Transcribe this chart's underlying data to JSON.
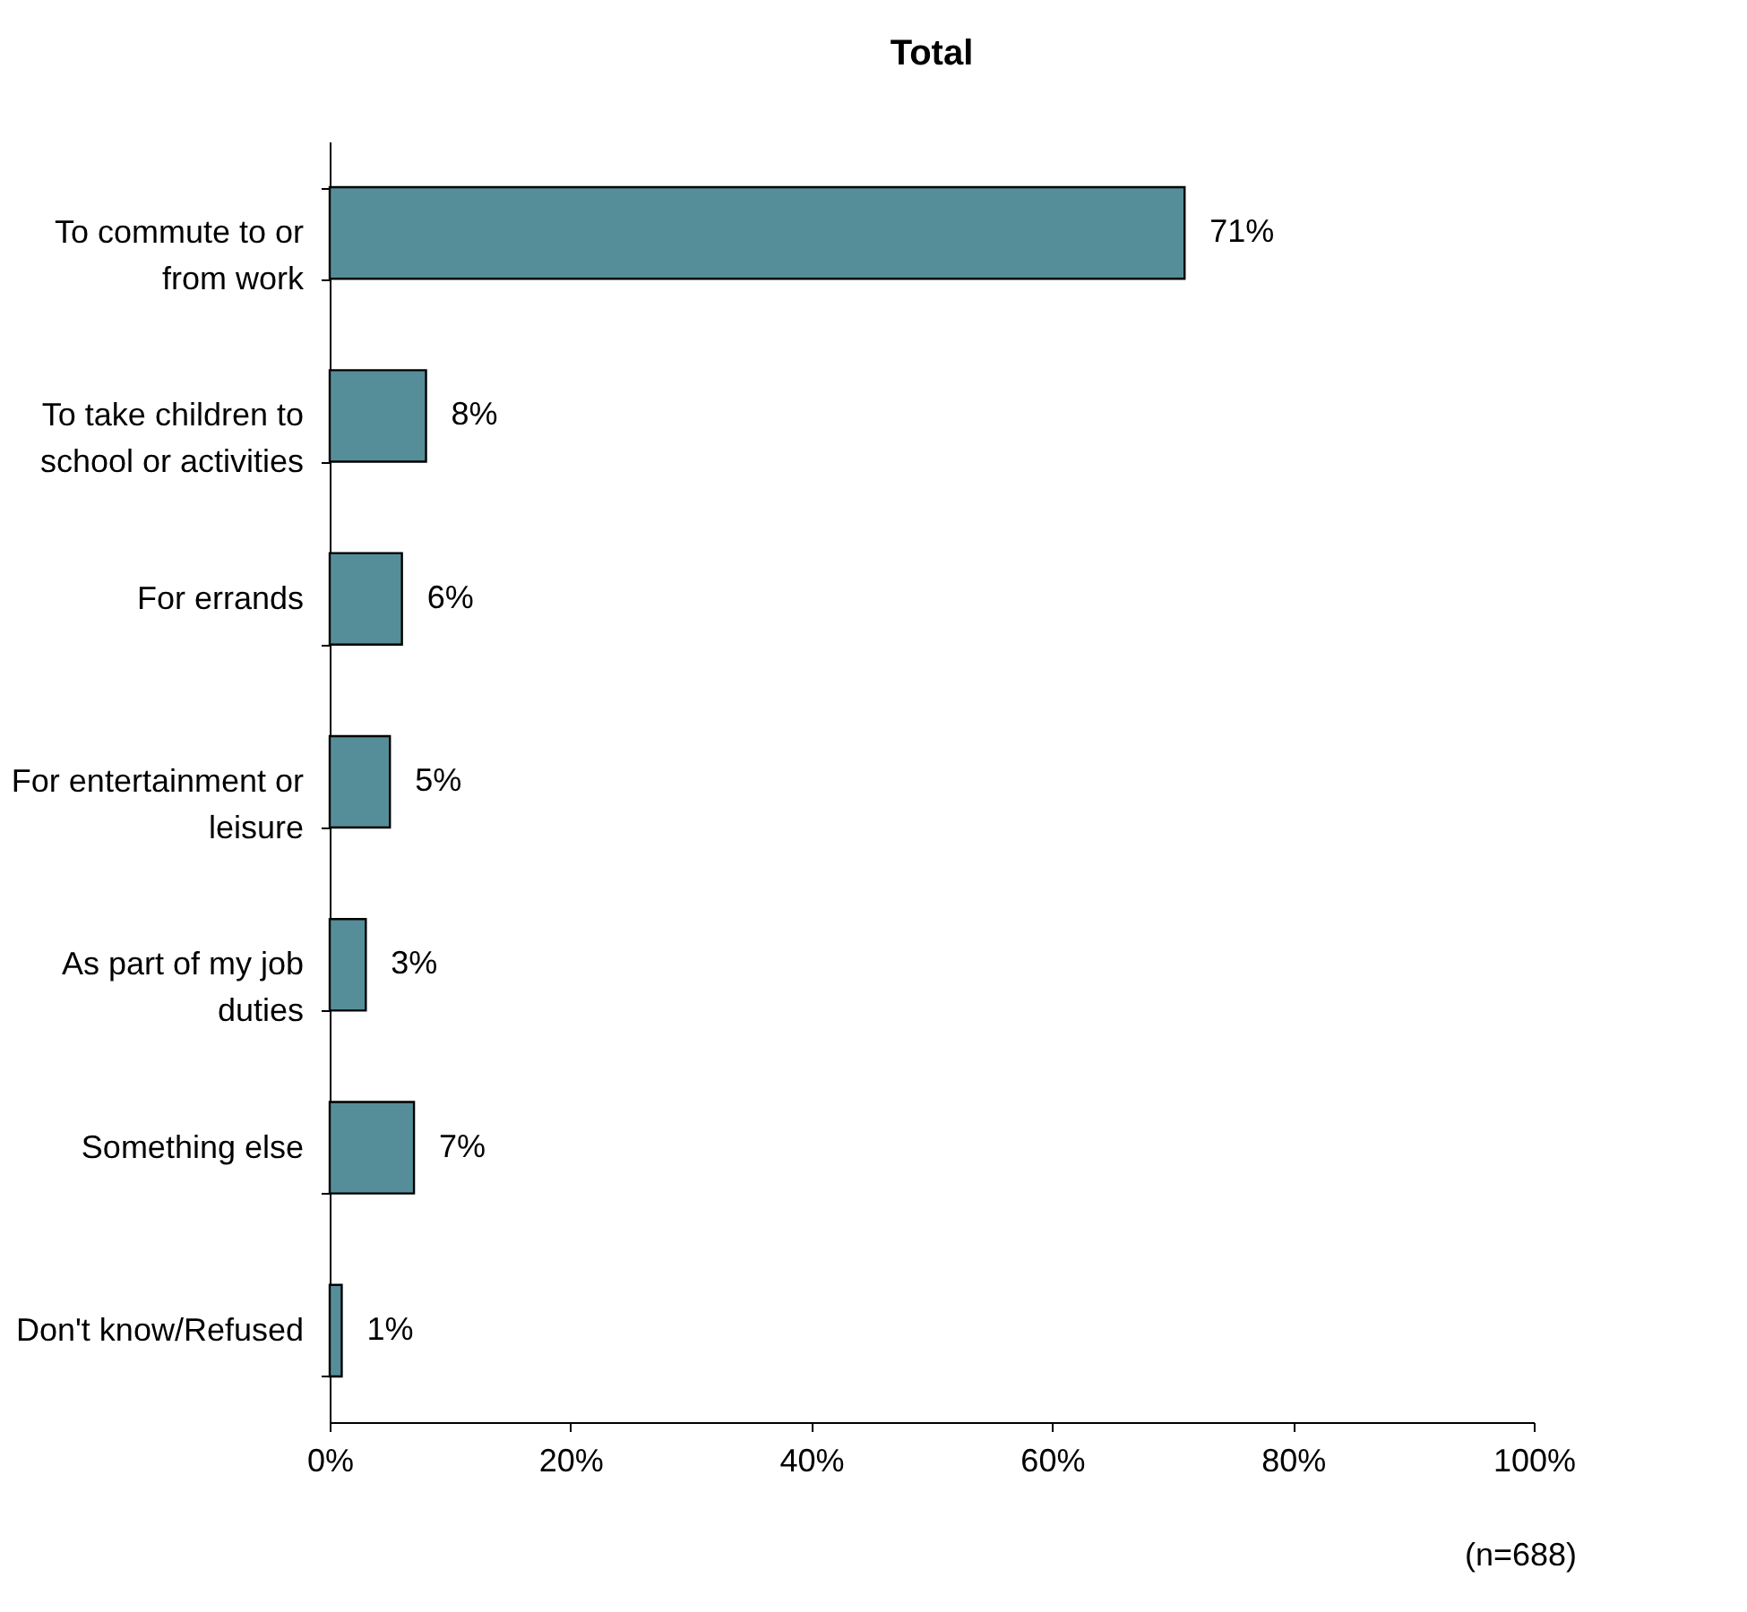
{
  "chart_data": {
    "type": "bar",
    "orientation": "horizontal",
    "title": "Total",
    "categories": [
      "To commute to or from work",
      "To take children to school or activities",
      "For errands",
      "For entertainment or leisure",
      "As part of my job duties",
      "Something else",
      "Don't know/Refused"
    ],
    "values": [
      71,
      8,
      6,
      5,
      3,
      7,
      1
    ],
    "value_labels": [
      "71%",
      "8%",
      "6%",
      "5%",
      "3%",
      "7%",
      "1%"
    ],
    "color": "#558e98",
    "xlim": [
      0,
      100
    ],
    "xticks": [
      {
        "value": 0,
        "label": "0%"
      },
      {
        "value": 20,
        "label": "20%"
      },
      {
        "value": 40,
        "label": "40%"
      },
      {
        "value": 60,
        "label": "60%"
      },
      {
        "value": 80,
        "label": "80%"
      },
      {
        "value": 100,
        "label": "100%"
      }
    ],
    "grid": false,
    "annotations": [
      "(n=688)"
    ]
  }
}
